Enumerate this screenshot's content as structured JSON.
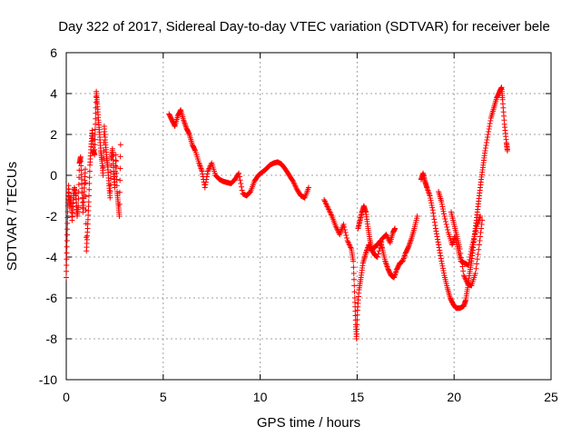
{
  "chart_data": {
    "type": "scatter",
    "title": "Day 322 of 2017, Sidereal Day-to-day VTEC variation (SDTVAR) for receiver bele",
    "xlabel": "GPS time / hours",
    "ylabel": "SDTVAR / TECUs",
    "xlim": [
      0,
      25
    ],
    "ylim": [
      -10,
      6
    ],
    "xticks": [
      0,
      5,
      10,
      15,
      20,
      25
    ],
    "yticks": [
      -10,
      -8,
      -6,
      -4,
      -2,
      0,
      2,
      4,
      6
    ],
    "xtick_labels": [
      "0",
      "5",
      "10",
      "15",
      "20",
      "25"
    ],
    "ytick_labels": [
      "-10",
      "-8",
      "-6",
      "-4",
      "-2",
      "0",
      "2",
      "4",
      "6"
    ],
    "grid": true,
    "marker": "+",
    "series": [
      {
        "name": "SDTVAR",
        "color": "#ff0000",
        "segments": [
          [
            [
              0.0,
              -5.0
            ],
            [
              0.04,
              -3.2
            ],
            [
              0.08,
              -1.5
            ],
            [
              0.12,
              -0.5
            ],
            [
              0.18,
              -1.6
            ],
            [
              0.24,
              -1.0
            ],
            [
              0.3,
              -2.2
            ],
            [
              0.36,
              -1.2
            ],
            [
              0.42,
              -0.6
            ],
            [
              0.5,
              -1.0
            ],
            [
              0.56,
              -2.0
            ],
            [
              0.62,
              -1.5
            ],
            [
              0.68,
              0.6
            ],
            [
              0.74,
              0.9
            ],
            [
              0.8,
              -0.4
            ],
            [
              0.86,
              -1.8
            ],
            [
              0.92,
              -0.8
            ],
            [
              0.98,
              0.3
            ],
            [
              1.04,
              -3.7
            ],
            [
              1.1,
              -2.6
            ],
            [
              1.16,
              -1.3
            ],
            [
              1.22,
              0.5
            ],
            [
              1.28,
              1.4
            ],
            [
              1.34,
              2.2
            ],
            [
              1.4,
              1.2
            ],
            [
              1.46,
              1.0
            ],
            [
              1.5,
              2.5
            ],
            [
              1.55,
              4.1
            ],
            [
              1.6,
              3.5
            ],
            [
              1.66,
              2.7
            ],
            [
              1.72,
              2.0
            ],
            [
              1.78,
              1.2
            ],
            [
              1.84,
              0.7
            ],
            [
              1.9,
              0.0
            ],
            [
              1.96,
              2.4
            ],
            [
              2.02,
              1.6
            ],
            [
              2.08,
              0.9
            ],
            [
              2.14,
              0.4
            ],
            [
              2.2,
              -0.4
            ],
            [
              2.26,
              -1.1
            ],
            [
              2.32,
              0.8
            ],
            [
              2.38,
              1.3
            ],
            [
              2.44,
              0.2
            ],
            [
              2.5,
              -0.6
            ],
            [
              2.56,
              1.0
            ],
            [
              2.62,
              -0.8
            ],
            [
              2.68,
              -1.4
            ],
            [
              2.74,
              -2.0
            ],
            [
              2.8,
              1.5
            ]
          ],
          [
            [
              5.3,
              3.0
            ],
            [
              5.45,
              2.7
            ],
            [
              5.6,
              2.4
            ],
            [
              5.75,
              2.9
            ],
            [
              5.9,
              3.2
            ],
            [
              6.05,
              2.7
            ],
            [
              6.2,
              2.3
            ],
            [
              6.35,
              2.0
            ],
            [
              6.5,
              1.5
            ],
            [
              6.65,
              1.2
            ],
            [
              6.85,
              0.6
            ],
            [
              7.0,
              0.2
            ],
            [
              7.15,
              -0.6
            ],
            [
              7.3,
              0.2
            ],
            [
              7.5,
              0.6
            ],
            [
              7.7,
              0.0
            ],
            [
              7.9,
              -0.2
            ],
            [
              8.1,
              -0.3
            ],
            [
              8.3,
              -0.35
            ],
            [
              8.5,
              -0.4
            ],
            [
              8.7,
              -0.2
            ],
            [
              8.9,
              0.1
            ],
            [
              9.1,
              -0.9
            ],
            [
              9.3,
              -1.0
            ],
            [
              9.5,
              -0.8
            ],
            [
              9.7,
              -0.3
            ],
            [
              9.9,
              0.0
            ],
            [
              10.1,
              0.15
            ],
            [
              10.3,
              0.3
            ],
            [
              10.5,
              0.5
            ],
            [
              10.7,
              0.6
            ],
            [
              10.9,
              0.65
            ],
            [
              11.1,
              0.55
            ],
            [
              11.3,
              0.3
            ],
            [
              11.5,
              0.0
            ],
            [
              11.7,
              -0.3
            ],
            [
              11.9,
              -0.7
            ],
            [
              12.1,
              -1.0
            ],
            [
              12.3,
              -1.1
            ],
            [
              12.5,
              -0.6
            ]
          ],
          [
            [
              13.3,
              -1.2
            ],
            [
              13.5,
              -1.6
            ],
            [
              13.7,
              -2.0
            ],
            [
              13.9,
              -2.5
            ],
            [
              14.1,
              -2.9
            ],
            [
              14.3,
              -2.4
            ],
            [
              14.5,
              -3.2
            ],
            [
              14.7,
              -3.6
            ],
            [
              14.8,
              -4.2
            ],
            [
              14.88,
              -6.0
            ],
            [
              14.93,
              -7.3
            ],
            [
              14.97,
              -8.0
            ],
            [
              15.02,
              -6.6
            ],
            [
              15.1,
              -5.6
            ],
            [
              15.2,
              -5.0
            ],
            [
              15.3,
              -4.3
            ],
            [
              15.45,
              -3.8
            ],
            [
              15.6,
              -3.4
            ],
            [
              15.75,
              -3.7
            ],
            [
              15.9,
              -3.5
            ],
            [
              16.05,
              -3.4
            ],
            [
              16.2,
              -3.2
            ],
            [
              16.3,
              -3.6
            ],
            [
              16.45,
              -4.2
            ],
            [
              16.6,
              -4.6
            ],
            [
              16.75,
              -4.9
            ],
            [
              16.9,
              -5.0
            ],
            [
              17.05,
              -4.6
            ],
            [
              17.2,
              -4.3
            ],
            [
              17.35,
              -4.2
            ],
            [
              17.5,
              -3.8
            ],
            [
              17.65,
              -3.5
            ],
            [
              17.8,
              -3.1
            ],
            [
              17.95,
              -2.6
            ],
            [
              18.1,
              -2.0
            ]
          ],
          [
            [
              15.05,
              -2.6
            ],
            [
              15.15,
              -2.2
            ],
            [
              15.25,
              -1.8
            ],
            [
              15.35,
              -1.5
            ],
            [
              15.45,
              -1.8
            ],
            [
              15.55,
              -2.5
            ],
            [
              15.65,
              -3.1
            ],
            [
              15.75,
              -3.6
            ],
            [
              15.9,
              -3.9
            ],
            [
              16.05,
              -4.0
            ],
            [
              16.3,
              -3.1
            ],
            [
              16.5,
              -2.9
            ],
            [
              16.7,
              -3.3
            ],
            [
              16.85,
              -2.8
            ],
            [
              16.95,
              -2.6
            ]
          ],
          [
            [
              18.3,
              -0.2
            ],
            [
              18.4,
              0.1
            ],
            [
              18.5,
              -0.3
            ],
            [
              18.6,
              -0.6
            ],
            [
              18.75,
              -1.0
            ],
            [
              18.9,
              -1.7
            ],
            [
              19.05,
              -2.6
            ],
            [
              19.2,
              -3.4
            ],
            [
              19.35,
              -4.2
            ],
            [
              19.5,
              -4.9
            ],
            [
              19.65,
              -5.5
            ],
            [
              19.8,
              -6.0
            ],
            [
              19.95,
              -6.3
            ],
            [
              20.1,
              -6.5
            ],
            [
              20.3,
              -6.5
            ],
            [
              20.5,
              -6.4
            ],
            [
              20.6,
              -6.1
            ],
            [
              20.7,
              -5.5
            ],
            [
              20.8,
              -4.8
            ],
            [
              20.9,
              -4.2
            ],
            [
              21.0,
              -3.4
            ],
            [
              21.1,
              -2.6
            ],
            [
              21.2,
              -1.8
            ],
            [
              21.3,
              -1.0
            ],
            [
              21.4,
              -0.2
            ],
            [
              21.5,
              0.5
            ],
            [
              21.6,
              1.2
            ],
            [
              21.75,
              2.0
            ],
            [
              21.9,
              2.8
            ],
            [
              22.05,
              3.3
            ],
            [
              22.2,
              3.8
            ],
            [
              22.35,
              4.1
            ],
            [
              22.45,
              4.3
            ],
            [
              22.5,
              3.7
            ],
            [
              22.6,
              2.5
            ],
            [
              22.7,
              1.6
            ],
            [
              22.75,
              1.2
            ]
          ],
          [
            [
              19.2,
              -0.8
            ],
            [
              19.35,
              -1.3
            ],
            [
              19.5,
              -2.0
            ],
            [
              19.7,
              -2.8
            ],
            [
              19.9,
              -3.4
            ],
            [
              20.05,
              -3.0
            ],
            [
              20.2,
              -3.6
            ],
            [
              20.35,
              -4.2
            ],
            [
              20.55,
              -4.3
            ],
            [
              20.75,
              -4.4
            ],
            [
              20.9,
              -3.6
            ],
            [
              21.05,
              -3.0
            ],
            [
              21.2,
              -2.4
            ],
            [
              21.35,
              -2.0
            ]
          ],
          [
            [
              19.85,
              -1.8
            ],
            [
              20.0,
              -2.4
            ],
            [
              20.15,
              -3.0
            ],
            [
              20.3,
              -3.6
            ],
            [
              20.5,
              -4.9
            ],
            [
              20.7,
              -5.3
            ],
            [
              20.9,
              -5.4
            ],
            [
              21.1,
              -4.8
            ],
            [
              21.3,
              -3.4
            ],
            [
              21.45,
              -2.2
            ]
          ]
        ]
      }
    ]
  }
}
